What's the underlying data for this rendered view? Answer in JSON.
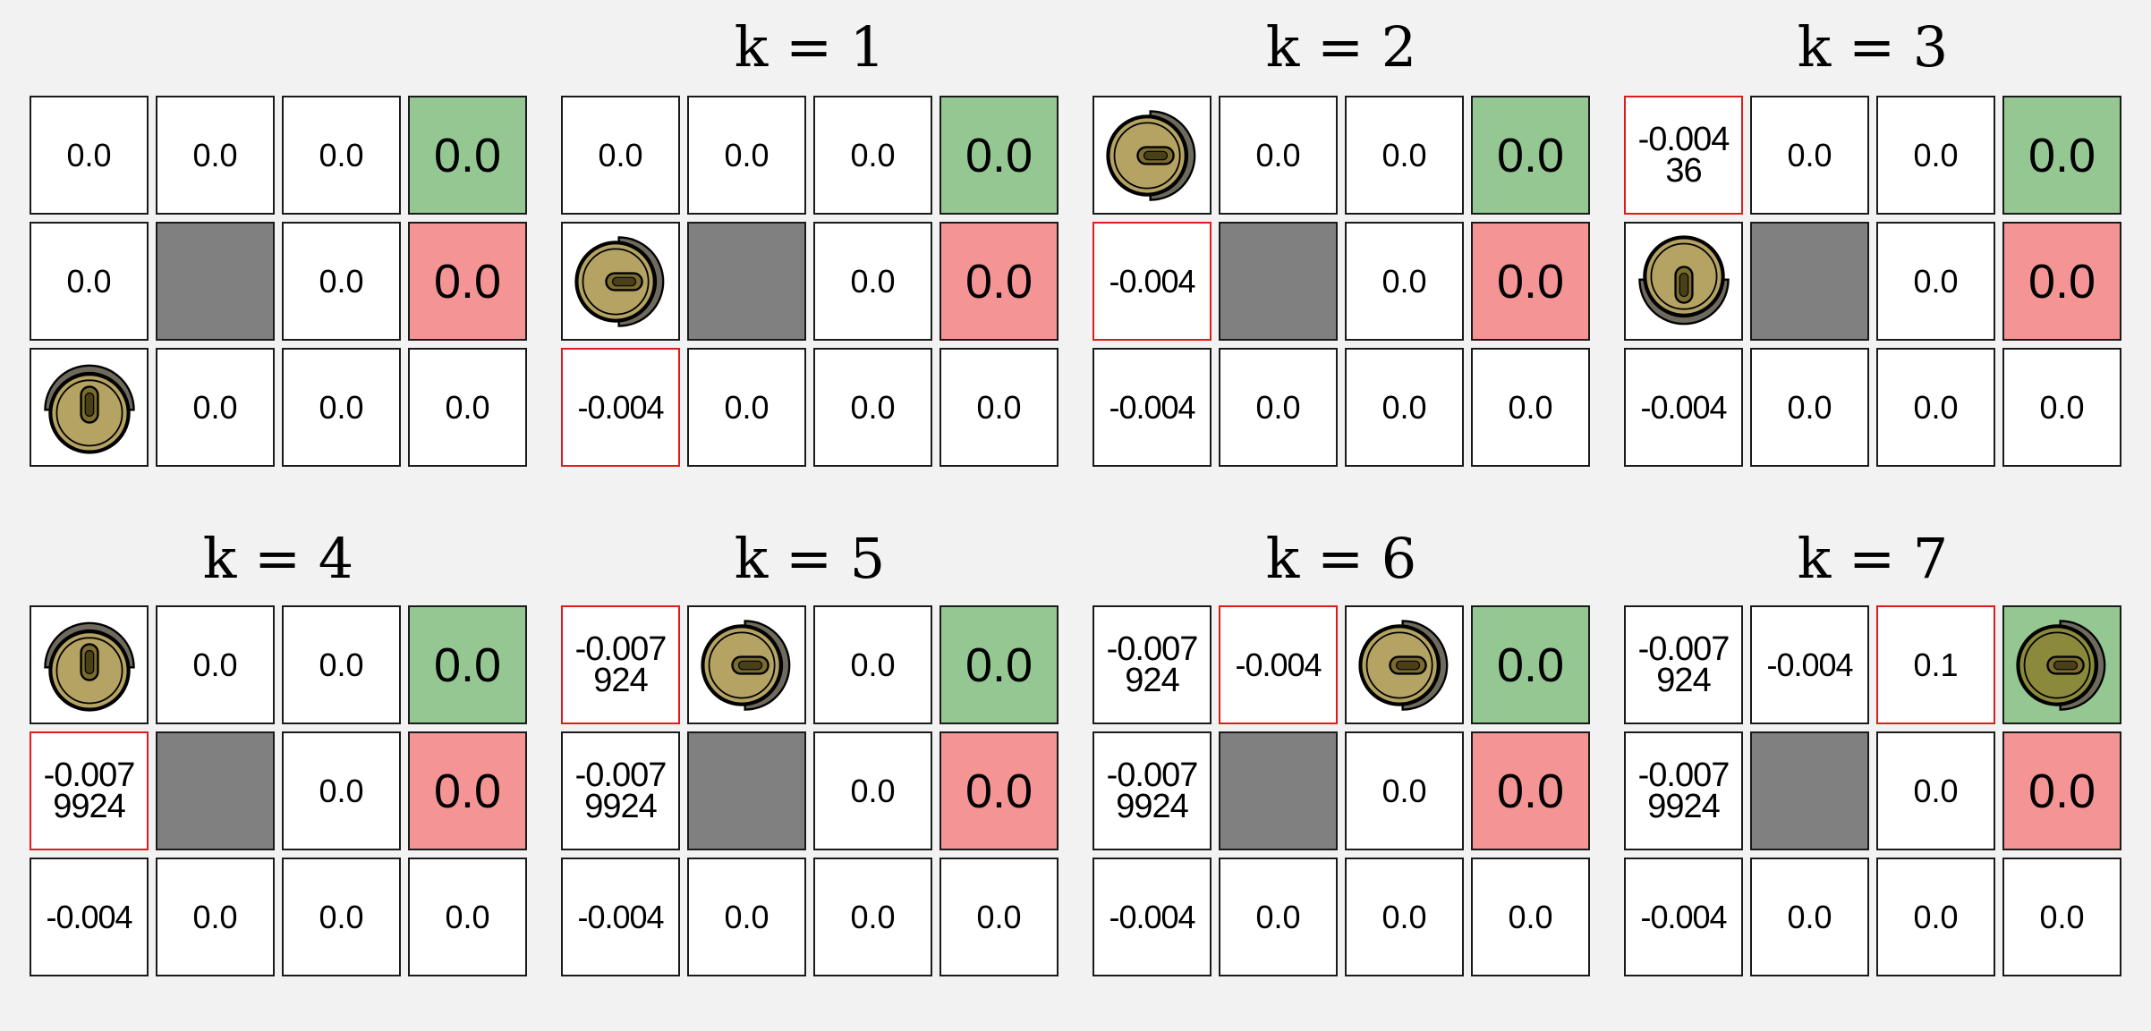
{
  "colors": {
    "background": "#f2f2f2",
    "cell": "#ffffff",
    "goal": "#95c793",
    "pit": "#f59494",
    "wall": "#808080",
    "highlight_border": "#e01b1b",
    "agent_body": "#b5a363"
  },
  "icons": {
    "agent": "robot-vacuum-icon"
  },
  "panels": [
    {
      "title": "",
      "agent": {
        "row": 2,
        "col": 0,
        "dir": "up"
      },
      "highlight": null,
      "cells": [
        [
          "0.0",
          "0.0",
          "0.0",
          "0.0"
        ],
        [
          "0.0",
          "",
          "0.0",
          "0.0"
        ],
        [
          "",
          "0.0",
          "0.0",
          "0.0"
        ]
      ]
    },
    {
      "title": "k = 1",
      "agent": {
        "row": 1,
        "col": 0,
        "dir": "right"
      },
      "highlight": {
        "row": 2,
        "col": 0
      },
      "cells": [
        [
          "0.0",
          "0.0",
          "0.0",
          "0.0"
        ],
        [
          "",
          "",
          "0.0",
          "0.0"
        ],
        [
          "-0.004",
          "0.0",
          "0.0",
          "0.0"
        ]
      ]
    },
    {
      "title": "k = 2",
      "agent": {
        "row": 0,
        "col": 0,
        "dir": "right"
      },
      "highlight": {
        "row": 1,
        "col": 0
      },
      "cells": [
        [
          "",
          "0.0",
          "0.0",
          "0.0"
        ],
        [
          "-0.004",
          "",
          "0.0",
          "0.0"
        ],
        [
          "-0.004",
          "0.0",
          "0.0",
          "0.0"
        ]
      ]
    },
    {
      "title": "k = 3",
      "agent": {
        "row": 1,
        "col": 0,
        "dir": "down"
      },
      "highlight": {
        "row": 0,
        "col": 0
      },
      "cells": [
        [
          "-0.004\n36",
          "0.0",
          "0.0",
          "0.0"
        ],
        [
          "",
          "",
          "0.0",
          "0.0"
        ],
        [
          "-0.004",
          "0.0",
          "0.0",
          "0.0"
        ]
      ]
    },
    {
      "title": "k = 4",
      "agent": {
        "row": 0,
        "col": 0,
        "dir": "up"
      },
      "highlight": {
        "row": 1,
        "col": 0
      },
      "cells": [
        [
          "",
          "0.0",
          "0.0",
          "0.0"
        ],
        [
          "-0.007\n9924",
          "",
          "0.0",
          "0.0"
        ],
        [
          "-0.004",
          "0.0",
          "0.0",
          "0.0"
        ]
      ]
    },
    {
      "title": "k = 5",
      "agent": {
        "row": 0,
        "col": 1,
        "dir": "right"
      },
      "highlight": {
        "row": 0,
        "col": 0
      },
      "cells": [
        [
          "-0.007\n924",
          "",
          "0.0",
          "0.0"
        ],
        [
          "-0.007\n9924",
          "",
          "0.0",
          "0.0"
        ],
        [
          "-0.004",
          "0.0",
          "0.0",
          "0.0"
        ]
      ]
    },
    {
      "title": "k = 6",
      "agent": {
        "row": 0,
        "col": 2,
        "dir": "right"
      },
      "highlight": {
        "row": 0,
        "col": 1
      },
      "cells": [
        [
          "-0.007\n924",
          "-0.004",
          "",
          "0.0"
        ],
        [
          "-0.007\n9924",
          "",
          "0.0",
          "0.0"
        ],
        [
          "-0.004",
          "0.0",
          "0.0",
          "0.0"
        ]
      ]
    },
    {
      "title": "k = 7",
      "agent": {
        "row": 0,
        "col": 3,
        "dir": "right"
      },
      "highlight": {
        "row": 0,
        "col": 2
      },
      "cells": [
        [
          "-0.007\n924",
          "-0.004",
          "0.1",
          ""
        ],
        [
          "-0.007\n9924",
          "",
          "0.0",
          "0.0"
        ],
        [
          "-0.004",
          "0.0",
          "0.0",
          "0.0"
        ]
      ]
    }
  ]
}
